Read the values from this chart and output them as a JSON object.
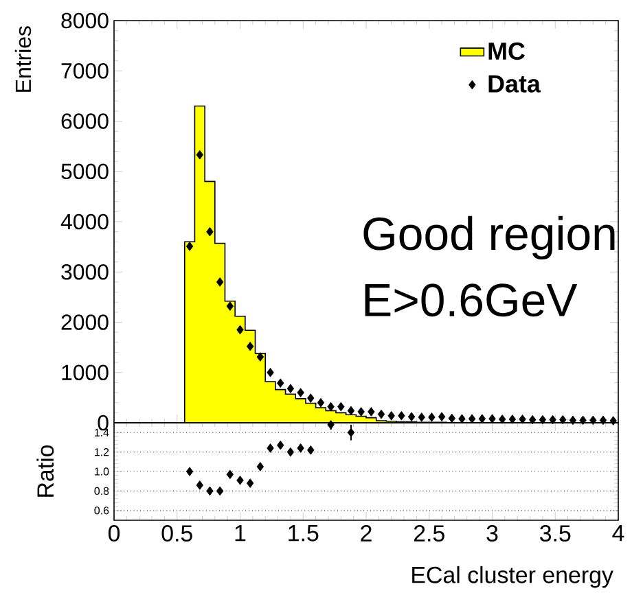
{
  "chart_data": [
    {
      "type": "histogram",
      "ylabel": "Entries",
      "annotations": [
        "Good region",
        "E>0.6GeV"
      ],
      "bins": [
        0.56,
        0.64,
        0.72,
        0.8,
        0.88,
        0.96,
        1.04,
        1.12,
        1.2,
        1.28,
        1.36,
        1.44,
        1.52,
        1.6,
        1.68,
        1.76,
        1.84,
        1.92,
        2.0,
        2.08,
        2.16,
        2.24,
        2.32,
        2.4,
        2.48,
        2.56,
        2.64,
        2.72,
        2.8,
        2.88,
        2.96,
        3.04,
        3.12,
        3.2,
        3.28,
        3.36,
        3.44,
        3.52,
        3.6,
        3.68,
        3.76,
        3.84,
        3.92,
        4.0
      ],
      "series": [
        {
          "name": "MC",
          "type": "histogram",
          "color": "#ffff00",
          "values": [
            3600,
            6300,
            4800,
            3570,
            2420,
            2120,
            1840,
            1380,
            820,
            660,
            570,
            480,
            390,
            300,
            240,
            200,
            160,
            130,
            100,
            40,
            30,
            20,
            20,
            10,
            10,
            10,
            0,
            0,
            0,
            0,
            0,
            0,
            0,
            0,
            0,
            0,
            0,
            0,
            0,
            0,
            0,
            0,
            0
          ]
        },
        {
          "name": "Data",
          "type": "scatter",
          "color": "#000000",
          "x": [
            0.6,
            0.68,
            0.76,
            0.84,
            0.92,
            1.0,
            1.08,
            1.16,
            1.24,
            1.32,
            1.4,
            1.48,
            1.56,
            1.64,
            1.72,
            1.8,
            1.88,
            1.96,
            2.04,
            2.12,
            2.2,
            2.28,
            2.36,
            2.44,
            2.52,
            2.6,
            2.68,
            2.76,
            2.84,
            2.92,
            3.0,
            3.08,
            3.16,
            3.24,
            3.32,
            3.4,
            3.48,
            3.56,
            3.64,
            3.72,
            3.8,
            3.88,
            3.96
          ],
          "values": [
            3510,
            5330,
            3800,
            2800,
            2320,
            1850,
            1520,
            1310,
            1000,
            790,
            680,
            600,
            490,
            400,
            320,
            320,
            240,
            220,
            220,
            170,
            140,
            140,
            120,
            110,
            110,
            120,
            90,
            80,
            80,
            80,
            80,
            70,
            70,
            70,
            60,
            60,
            60,
            60,
            50,
            50,
            50,
            50,
            40
          ]
        }
      ],
      "xlim": [
        0,
        4
      ],
      "ylim": [
        0,
        8000
      ],
      "xticks": [
        0,
        0.5,
        1,
        1.5,
        2,
        2.5,
        3,
        3.5,
        4
      ],
      "yticks": [
        0,
        1000,
        2000,
        3000,
        4000,
        5000,
        6000,
        7000,
        8000
      ],
      "tick_labels": "y",
      "legend": "top right",
      "marker": "diamond"
    },
    {
      "type": "scatter",
      "xlabel": "ECal cluster energy",
      "ylabel": "Ratio",
      "color": "#000000",
      "x": [
        0.6,
        0.68,
        0.76,
        0.84,
        0.92,
        1.0,
        1.08,
        1.16,
        1.24,
        1.32,
        1.4,
        1.48,
        1.56,
        1.72,
        1.88
      ],
      "values": [
        1.0,
        0.86,
        0.8,
        0.8,
        0.97,
        0.91,
        0.88,
        1.05,
        1.24,
        1.27,
        1.2,
        1.24,
        1.22,
        1.48,
        1.4
      ],
      "errors": [
        0.02,
        0.02,
        0.02,
        0.02,
        0.02,
        0.02,
        0.03,
        0.03,
        0.03,
        0.03,
        0.03,
        0.04,
        0.04,
        0.05,
        0.08
      ],
      "xlim": [
        0,
        4
      ],
      "ylim": [
        0.5,
        1.5
      ],
      "xticks": [
        0,
        0.5,
        1,
        1.5,
        2,
        2.5,
        3,
        3.5,
        4
      ],
      "yticks": [
        0.6,
        0.8,
        {
          "value": 1.0,
          "label": "1.0"
        },
        1.2,
        1.4
      ],
      "grid": "y",
      "marker": "diamond"
    }
  ]
}
